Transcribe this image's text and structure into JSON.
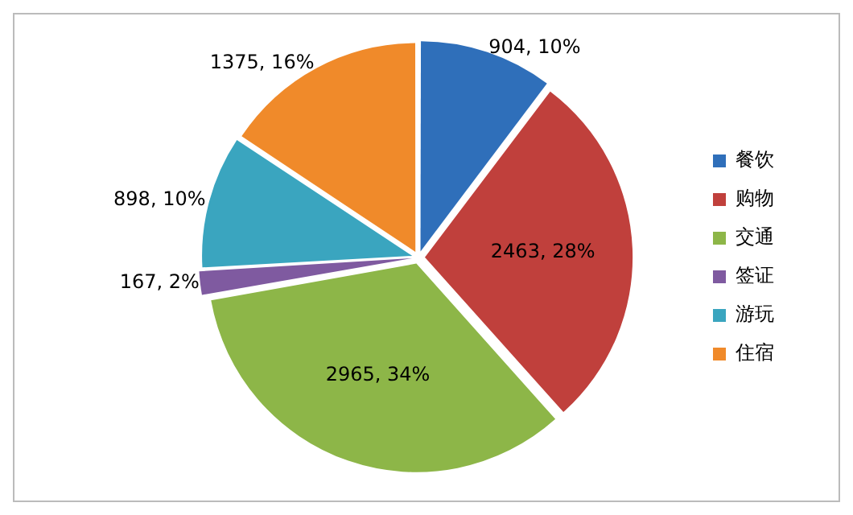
{
  "chart_data": {
    "type": "pie",
    "categories": [
      "餐饮",
      "购物",
      "交通",
      "签证",
      "游玩",
      "住宿"
    ],
    "values": [
      904,
      2463,
      2965,
      167,
      898,
      1375
    ],
    "colors": [
      "#2f6fba",
      "#c0403c",
      "#8db648",
      "#7f5aa0",
      "#3aa5bf",
      "#f08a2a"
    ],
    "value_labels": [
      "904, 10%",
      "2463, 28%",
      "2965, 34%",
      "167, 2%",
      "898, 10%",
      "1375, 16%"
    ],
    "legend": "right"
  }
}
